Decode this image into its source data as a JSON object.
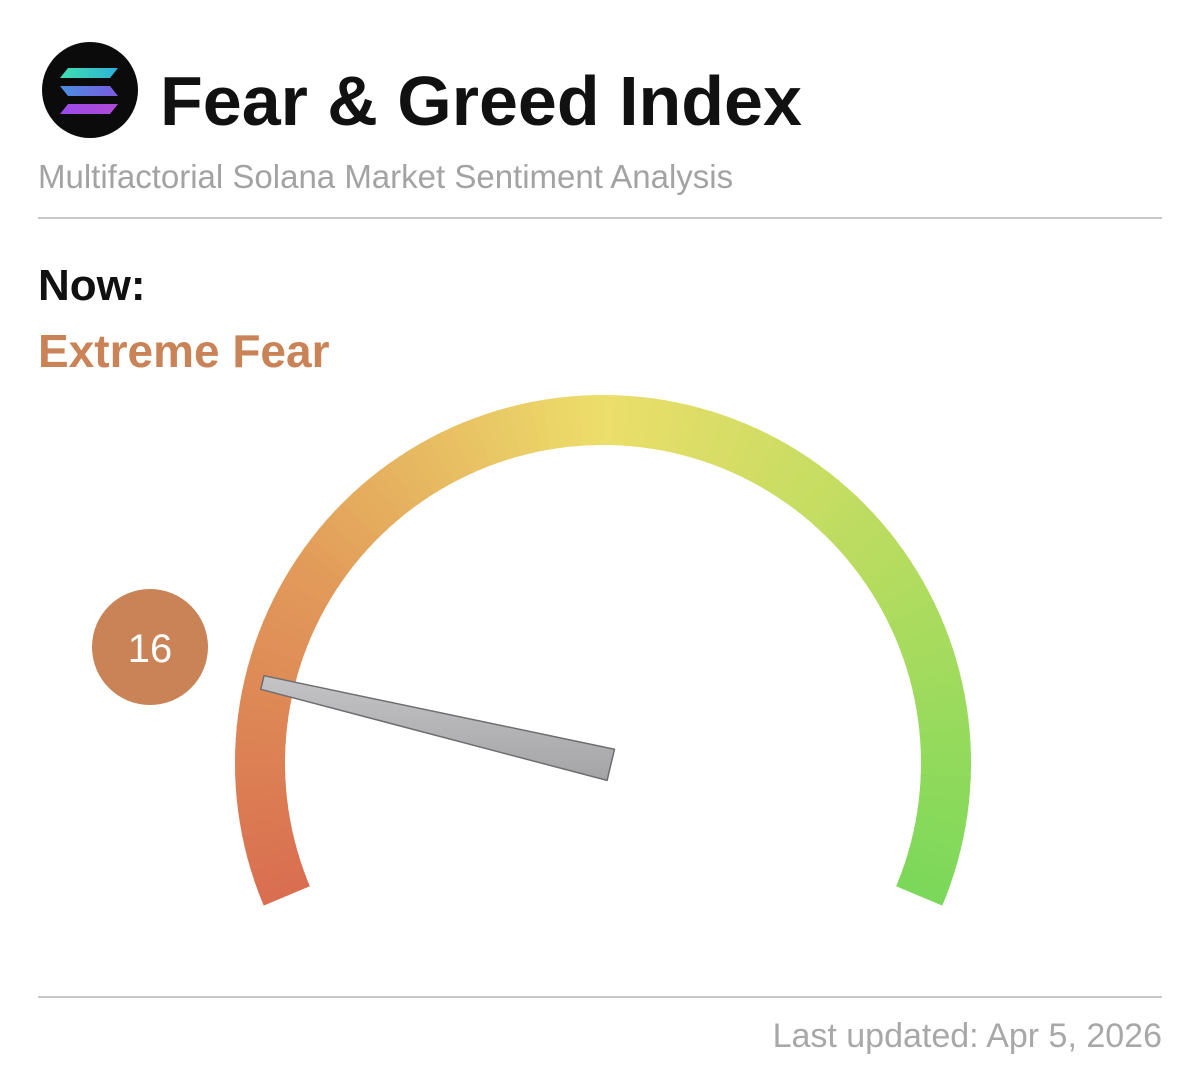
{
  "chart_data": {
    "type": "gauge",
    "title": "Fear & Greed Index",
    "subtitle": "Multifactorial Solana Market Sentiment Analysis",
    "label": "Now:",
    "status": "Extreme Fear",
    "value": 16,
    "ylim": [
      0,
      100
    ],
    "color": "#c98356",
    "footer": "Last updated: Apr 5, 2026"
  }
}
